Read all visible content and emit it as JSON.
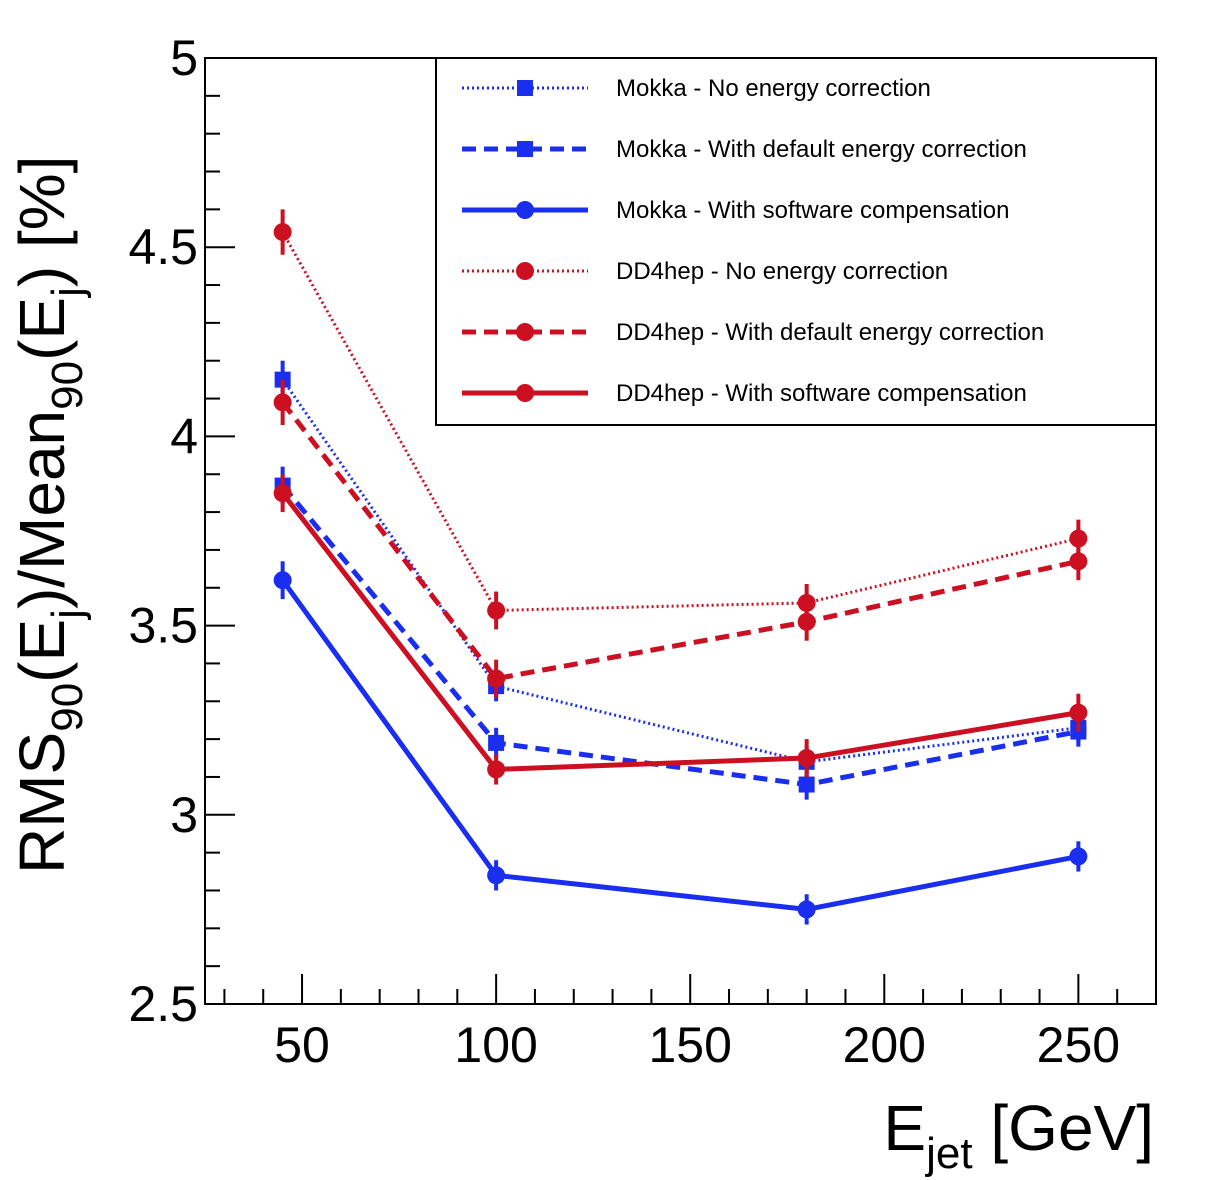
{
  "chart_data": {
    "type": "line",
    "x": [
      45,
      100,
      180,
      250
    ],
    "xlim": [
      25,
      270
    ],
    "ylim": [
      2.5,
      5
    ],
    "x_ticks": [
      "50",
      "100",
      "150",
      "200",
      "250"
    ],
    "y_ticks": [
      "2.5",
      "3",
      "3.5",
      "4",
      "4.5",
      "5"
    ],
    "xlabel": {
      "main": "E",
      "sub": "jet",
      "unit": " [GeV]"
    },
    "ylabel": {
      "p1": "RMS",
      "s1": "90",
      "p2": "(E",
      "s2": "j",
      "p3": ")/Mean",
      "s3": "90",
      "p4": "(E",
      "s4": "j",
      "p5": ") [%]"
    },
    "grid": false,
    "legend_position": "top-right",
    "series": [
      {
        "name": "Mokka - No energy correction",
        "color": "#1a2ef0",
        "dash": "dotted",
        "marker": "square",
        "y": [
          4.15,
          3.34,
          3.14,
          3.23
        ],
        "err": [
          0.05,
          0.04,
          0.04,
          0.04
        ]
      },
      {
        "name": "Mokka - With default energy correction",
        "color": "#1a2ef0",
        "dash": "dashed",
        "marker": "square",
        "y": [
          3.87,
          3.19,
          3.08,
          3.22
        ],
        "err": [
          0.05,
          0.04,
          0.04,
          0.04
        ]
      },
      {
        "name": "Mokka - With software compensation",
        "color": "#1a2ef0",
        "dash": "solid",
        "marker": "circle",
        "y": [
          3.62,
          2.84,
          2.75,
          2.89
        ],
        "err": [
          0.05,
          0.04,
          0.04,
          0.04
        ]
      },
      {
        "name": "DD4hep - No energy correction",
        "color": "#cc1022",
        "dash": "dotted",
        "marker": "circle",
        "y": [
          4.54,
          3.54,
          3.56,
          3.73
        ],
        "err": [
          0.06,
          0.05,
          0.05,
          0.05
        ]
      },
      {
        "name": "DD4hep - With default energy correction",
        "color": "#cc1022",
        "dash": "dashed",
        "marker": "circle",
        "y": [
          4.09,
          3.36,
          3.51,
          3.67
        ],
        "err": [
          0.06,
          0.05,
          0.05,
          0.05
        ]
      },
      {
        "name": "DD4hep - With software compensation",
        "color": "#cc1022",
        "dash": "solid",
        "marker": "circle",
        "y": [
          3.85,
          3.12,
          3.15,
          3.27
        ],
        "err": [
          0.05,
          0.04,
          0.05,
          0.05
        ]
      }
    ]
  }
}
